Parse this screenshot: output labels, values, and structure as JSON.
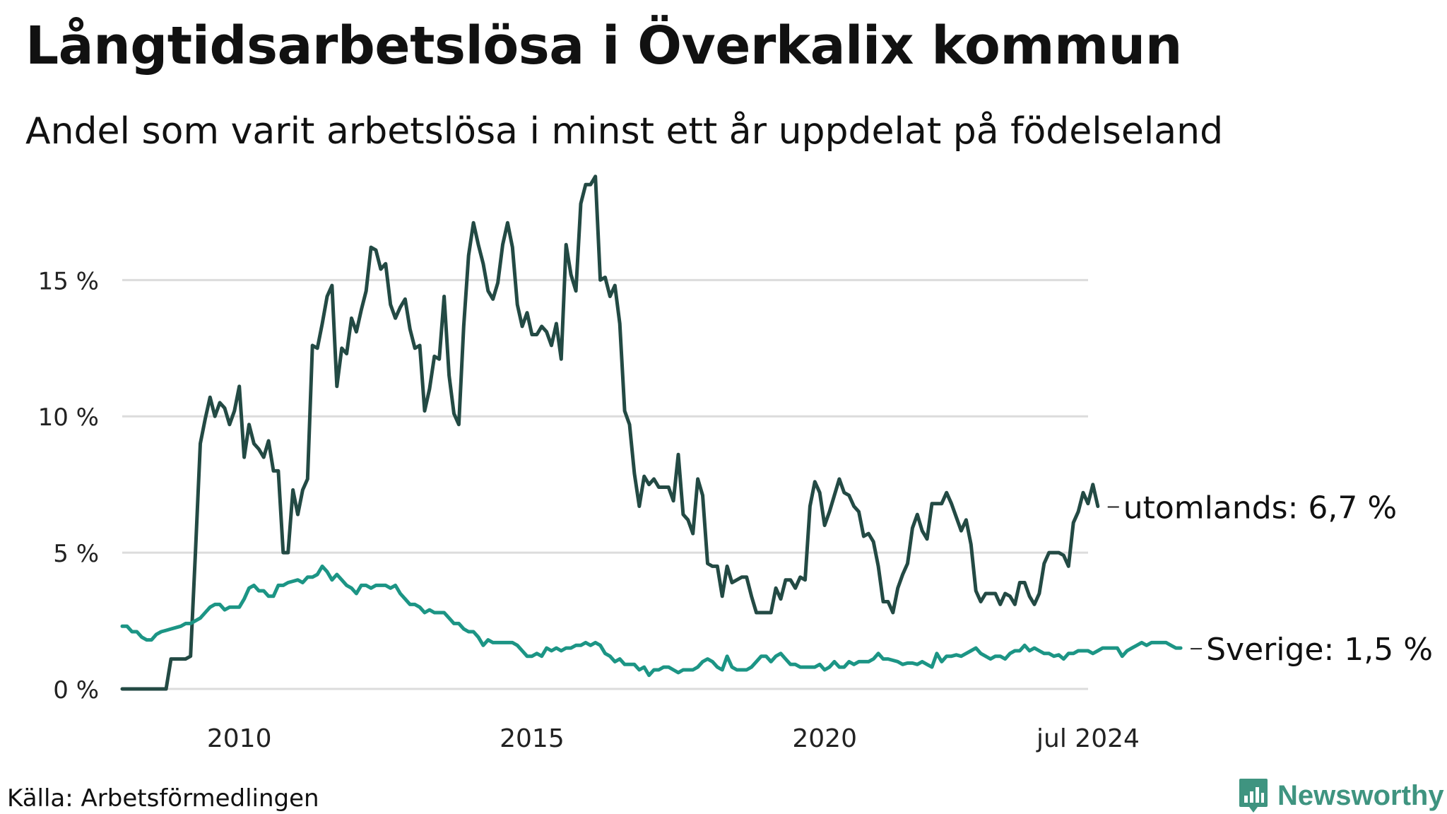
{
  "title": "Långtidsarbetslösa i Överkalix kommun",
  "subtitle": "Andel som varit arbetslösa i minst ett år uppdelat på födelseland",
  "source": "Källa: Arbetsförmedlingen",
  "logo_text": "Newsworthy",
  "colors": {
    "utomlands": "#234a44",
    "sverige": "#1c9585",
    "grid": "#dcdcdc",
    "logo": "#3f9480"
  },
  "chart_data": {
    "type": "line",
    "title": "Långtidsarbetslösa i Överkalix kommun",
    "xlabel": "",
    "ylabel": "",
    "ylim": [
      0,
      19
    ],
    "xlim": [
      2008.0,
      2024.5
    ],
    "y_ticks": [
      0,
      5,
      10,
      15
    ],
    "y_tick_labels": [
      "0 %",
      "5 %",
      "10 %",
      "15 %"
    ],
    "x_ticks": [
      2010,
      2015,
      2020,
      2024.5
    ],
    "x_tick_labels": [
      "2010",
      "2015",
      "2020",
      "jul 2024"
    ],
    "x_start": 2008.0,
    "x_step": 0.08333,
    "series": [
      {
        "name": "utomlands",
        "end_label": "utomlands: 6,7 %",
        "color": "#234a44",
        "values": [
          0,
          0,
          0,
          0,
          0,
          0,
          0,
          0,
          0,
          0,
          1.1,
          1.1,
          1.1,
          1.1,
          1.2,
          5,
          9,
          9.9,
          10.7,
          10,
          10.5,
          10.3,
          9.7,
          10.2,
          11.1,
          8.5,
          9.7,
          9,
          8.8,
          8.5,
          9.1,
          8,
          8,
          5,
          5,
          7.3,
          6.4,
          7.3,
          7.7,
          12.6,
          12.5,
          13.4,
          14.4,
          14.8,
          11.1,
          12.5,
          12.3,
          13.6,
          13.1,
          13.9,
          14.6,
          16.2,
          16.1,
          15.4,
          15.6,
          14.1,
          13.6,
          14,
          14.3,
          13.2,
          12.5,
          12.6,
          10.2,
          11,
          12.2,
          12.1,
          14.4,
          11.5,
          10.1,
          9.7,
          13.3,
          15.9,
          17.1,
          16.3,
          15.6,
          14.6,
          14.3,
          14.9,
          16.3,
          17.1,
          16.2,
          14.1,
          13.3,
          13.8,
          13,
          13,
          13.3,
          13.1,
          12.6,
          13.4,
          12.1,
          16.3,
          15.2,
          14.6,
          17.8,
          18.5,
          18.5,
          18.8,
          15,
          15.1,
          14.4,
          14.8,
          13.4,
          10.2,
          9.7,
          7.9,
          6.7,
          7.8,
          7.5,
          7.7,
          7.4,
          7.4,
          7.4,
          6.9,
          8.6,
          6.4,
          6.2,
          5.7,
          7.7,
          7.1,
          4.6,
          4.5,
          4.5,
          3.4,
          4.5,
          3.9,
          4,
          4.1,
          4.1,
          3.4,
          2.8,
          2.8,
          2.8,
          2.8,
          3.7,
          3.3,
          4,
          4,
          3.7,
          4.1,
          4,
          6.7,
          7.6,
          7.2,
          6,
          6.5,
          7.1,
          7.7,
          7.2,
          7.1,
          6.7,
          6.5,
          5.6,
          5.7,
          5.4,
          4.5,
          3.2,
          3.2,
          2.8,
          3.7,
          4.2,
          4.6,
          5.9,
          6.4,
          5.8,
          5.5,
          6.8,
          6.8,
          6.8,
          7.2,
          6.8,
          6.3,
          5.8,
          6.2,
          5.3,
          3.6,
          3.2,
          3.5,
          3.5,
          3.5,
          3.1,
          3.5,
          3.4,
          3.1,
          3.9,
          3.9,
          3.4,
          3.1,
          3.5,
          4.6,
          5,
          5,
          5,
          4.9,
          4.5,
          6.1,
          6.5,
          7.2,
          6.8,
          7.5,
          6.7
        ]
      },
      {
        "name": "Sverige",
        "end_label": "Sverige: 1,5 %",
        "color": "#1c9585",
        "values": [
          2.3,
          2.3,
          2.1,
          2.1,
          1.9,
          1.8,
          1.8,
          2,
          2.1,
          2.15,
          2.2,
          2.25,
          2.3,
          2.4,
          2.4,
          2.5,
          2.6,
          2.8,
          3,
          3.1,
          3.1,
          2.9,
          3,
          3,
          3,
          3.3,
          3.7,
          3.8,
          3.6,
          3.6,
          3.4,
          3.4,
          3.8,
          3.8,
          3.9,
          3.95,
          4,
          3.9,
          4.1,
          4.1,
          4.2,
          4.5,
          4.3,
          4,
          4.2,
          4,
          3.8,
          3.7,
          3.5,
          3.8,
          3.8,
          3.7,
          3.8,
          3.8,
          3.8,
          3.7,
          3.8,
          3.5,
          3.3,
          3.1,
          3.1,
          3,
          2.8,
          2.9,
          2.8,
          2.8,
          2.8,
          2.6,
          2.4,
          2.4,
          2.2,
          2.1,
          2.1,
          1.9,
          1.6,
          1.8,
          1.7,
          1.7,
          1.7,
          1.7,
          1.7,
          1.6,
          1.4,
          1.2,
          1.2,
          1.3,
          1.2,
          1.5,
          1.4,
          1.5,
          1.4,
          1.5,
          1.5,
          1.6,
          1.6,
          1.7,
          1.6,
          1.7,
          1.6,
          1.3,
          1.2,
          1,
          1.1,
          0.9,
          0.9,
          0.9,
          0.7,
          0.8,
          0.5,
          0.7,
          0.7,
          0.8,
          0.8,
          0.7,
          0.6,
          0.7,
          0.7,
          0.7,
          0.8,
          1,
          1.1,
          1,
          0.8,
          0.7,
          1.2,
          0.8,
          0.7,
          0.7,
          0.7,
          0.8,
          1,
          1.2,
          1.2,
          1,
          1.2,
          1.3,
          1.1,
          0.9,
          0.9,
          0.8,
          0.8,
          0.8,
          0.8,
          0.9,
          0.7,
          0.8,
          1,
          0.8,
          0.8,
          1,
          0.9,
          1,
          1,
          1,
          1.1,
          1.3,
          1.1,
          1.1,
          1.05,
          1,
          0.9,
          0.95,
          0.95,
          0.9,
          1,
          0.9,
          0.8,
          1.3,
          1,
          1.2,
          1.2,
          1.25,
          1.2,
          1.3,
          1.4,
          1.5,
          1.3,
          1.2,
          1.1,
          1.2,
          1.2,
          1.1,
          1.3,
          1.4,
          1.4,
          1.6,
          1.4,
          1.5,
          1.4,
          1.3,
          1.3,
          1.2,
          1.25,
          1.1,
          1.3,
          1.3,
          1.4,
          1.4,
          1.4,
          1.3,
          1.4,
          1.5,
          1.5,
          1.5,
          1.5,
          1.2,
          1.4,
          1.5,
          1.6,
          1.7,
          1.6,
          1.7,
          1.7,
          1.7,
          1.7,
          1.6,
          1.5,
          1.5
        ]
      }
    ]
  }
}
